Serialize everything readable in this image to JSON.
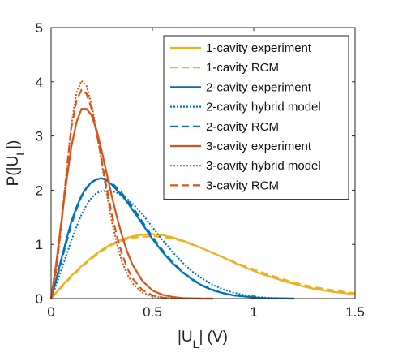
{
  "chart_data": {
    "type": "line",
    "xlabel": "|U_L| (V)",
    "ylabel": "P(|U_L|)",
    "xlim": [
      0,
      1.5
    ],
    "ylim": [
      0,
      5
    ],
    "x_ticks": [
      "0",
      "0.5",
      "1",
      "1.5"
    ],
    "y_ticks": [
      "0",
      "1",
      "2",
      "3",
      "4",
      "5"
    ],
    "grid": false,
    "legend_position": "top-right",
    "series": [
      {
        "name": "1-cavity experiment",
        "color": "#EDB120",
        "style": "solid",
        "x": [
          0,
          0.05,
          0.1,
          0.15,
          0.2,
          0.25,
          0.3,
          0.35,
          0.4,
          0.45,
          0.5,
          0.55,
          0.6,
          0.65,
          0.7,
          0.75,
          0.8,
          0.85,
          0.9,
          0.95,
          1.0,
          1.05,
          1.1,
          1.15,
          1.2,
          1.25,
          1.3,
          1.35,
          1.4,
          1.45,
          1.5
        ],
        "y": [
          0,
          0.22,
          0.42,
          0.6,
          0.76,
          0.9,
          1.01,
          1.09,
          1.15,
          1.18,
          1.19,
          1.17,
          1.13,
          1.07,
          1.0,
          0.92,
          0.84,
          0.76,
          0.67,
          0.59,
          0.51,
          0.44,
          0.38,
          0.32,
          0.27,
          0.22,
          0.18,
          0.15,
          0.12,
          0.1,
          0.08
        ]
      },
      {
        "name": "1-cavity RCM",
        "color": "#EDB120",
        "style": "dashed",
        "x": [
          0,
          0.05,
          0.1,
          0.15,
          0.2,
          0.25,
          0.3,
          0.35,
          0.4,
          0.45,
          0.5,
          0.55,
          0.6,
          0.65,
          0.7,
          0.75,
          0.8,
          0.85,
          0.9,
          0.95,
          1.0,
          1.05,
          1.1,
          1.15,
          1.2,
          1.25,
          1.3,
          1.35,
          1.4,
          1.45,
          1.5
        ],
        "y": [
          0,
          0.2,
          0.4,
          0.58,
          0.74,
          0.88,
          0.99,
          1.07,
          1.12,
          1.14,
          1.15,
          1.14,
          1.11,
          1.06,
          0.99,
          0.92,
          0.84,
          0.76,
          0.68,
          0.61,
          0.54,
          0.47,
          0.41,
          0.35,
          0.3,
          0.25,
          0.21,
          0.18,
          0.15,
          0.12,
          0.1
        ]
      },
      {
        "name": "2-cavity experiment",
        "color": "#0072BD",
        "style": "solid",
        "x": [
          0,
          0.025,
          0.05,
          0.075,
          0.1,
          0.125,
          0.15,
          0.175,
          0.2,
          0.225,
          0.25,
          0.275,
          0.3,
          0.325,
          0.35,
          0.375,
          0.4,
          0.45,
          0.5,
          0.55,
          0.6,
          0.65,
          0.7,
          0.75,
          0.8,
          0.85,
          0.9,
          0.95,
          1.0,
          1.05,
          1.1,
          1.2
        ],
        "y": [
          0,
          0.35,
          0.72,
          1.08,
          1.42,
          1.68,
          1.9,
          2.05,
          2.15,
          2.2,
          2.22,
          2.18,
          2.1,
          2.0,
          1.9,
          1.78,
          1.65,
          1.38,
          1.1,
          0.86,
          0.65,
          0.48,
          0.34,
          0.23,
          0.15,
          0.1,
          0.06,
          0.04,
          0.02,
          0.01,
          0.005,
          0
        ]
      },
      {
        "name": "2-cavity hybrid model",
        "color": "#0072BD",
        "style": "dotted",
        "x": [
          0,
          0.025,
          0.05,
          0.075,
          0.1,
          0.125,
          0.15,
          0.175,
          0.2,
          0.225,
          0.25,
          0.275,
          0.3,
          0.325,
          0.35,
          0.375,
          0.4,
          0.45,
          0.5,
          0.55,
          0.6,
          0.65,
          0.7,
          0.75,
          0.8,
          0.85,
          0.9,
          0.95,
          1.0,
          1.05,
          1.1,
          1.2
        ],
        "y": [
          0,
          0.25,
          0.52,
          0.8,
          1.07,
          1.32,
          1.55,
          1.73,
          1.86,
          1.95,
          1.98,
          1.99,
          1.98,
          1.95,
          1.9,
          1.84,
          1.76,
          1.56,
          1.32,
          1.08,
          0.86,
          0.66,
          0.49,
          0.36,
          0.25,
          0.17,
          0.11,
          0.07,
          0.04,
          0.02,
          0.01,
          0
        ]
      },
      {
        "name": "2-cavity RCM",
        "color": "#0072BD",
        "style": "dashed",
        "x": [
          0,
          0.025,
          0.05,
          0.075,
          0.1,
          0.125,
          0.15,
          0.175,
          0.2,
          0.225,
          0.25,
          0.275,
          0.3,
          0.325,
          0.35,
          0.375,
          0.4,
          0.45,
          0.5,
          0.55,
          0.6,
          0.65,
          0.7,
          0.75,
          0.8,
          0.85,
          0.9,
          0.95,
          1.0,
          1.05,
          1.1,
          1.2
        ],
        "y": [
          0,
          0.33,
          0.68,
          1.03,
          1.37,
          1.65,
          1.88,
          2.04,
          2.14,
          2.2,
          2.22,
          2.2,
          2.13,
          2.04,
          1.94,
          1.82,
          1.7,
          1.42,
          1.14,
          0.89,
          0.67,
          0.49,
          0.35,
          0.24,
          0.16,
          0.1,
          0.06,
          0.04,
          0.02,
          0.01,
          0.005,
          0
        ]
      },
      {
        "name": "3-cavity experiment",
        "color": "#D95319",
        "style": "solid",
        "x": [
          0,
          0.025,
          0.05,
          0.075,
          0.1,
          0.125,
          0.15,
          0.175,
          0.2,
          0.225,
          0.25,
          0.275,
          0.3,
          0.325,
          0.35,
          0.375,
          0.4,
          0.45,
          0.5,
          0.55,
          0.6,
          0.65,
          0.7,
          0.75,
          0.8
        ],
        "y": [
          0,
          0.65,
          1.4,
          2.15,
          2.8,
          3.25,
          3.5,
          3.5,
          3.38,
          3.1,
          2.72,
          2.3,
          1.88,
          1.5,
          1.16,
          0.87,
          0.64,
          0.33,
          0.15,
          0.07,
          0.03,
          0.01,
          0.005,
          0,
          0
        ]
      },
      {
        "name": "3-cavity hybrid model",
        "color": "#D95319",
        "style": "dotted",
        "x": [
          0,
          0.025,
          0.05,
          0.075,
          0.1,
          0.125,
          0.15,
          0.175,
          0.2,
          0.225,
          0.25,
          0.275,
          0.3,
          0.325,
          0.35,
          0.375,
          0.4,
          0.45,
          0.5,
          0.55,
          0.6,
          0.65,
          0.7,
          0.75,
          0.8
        ],
        "y": [
          0,
          0.5,
          1.3,
          2.3,
          3.2,
          3.8,
          4.02,
          3.92,
          3.58,
          3.08,
          2.5,
          1.92,
          1.42,
          1.0,
          0.68,
          0.45,
          0.29,
          0.11,
          0.04,
          0.015,
          0.005,
          0,
          0,
          0,
          0
        ]
      },
      {
        "name": "3-cavity RCM",
        "color": "#D95319",
        "style": "dashed",
        "x": [
          0,
          0.025,
          0.05,
          0.075,
          0.1,
          0.125,
          0.15,
          0.175,
          0.2,
          0.225,
          0.25,
          0.275,
          0.3,
          0.325,
          0.35,
          0.375,
          0.4,
          0.45,
          0.5,
          0.55,
          0.6,
          0.65,
          0.7,
          0.75,
          0.8
        ],
        "y": [
          0,
          0.55,
          1.35,
          2.3,
          3.15,
          3.65,
          3.85,
          3.78,
          3.5,
          3.05,
          2.55,
          2.02,
          1.55,
          1.15,
          0.82,
          0.57,
          0.38,
          0.16,
          0.06,
          0.02,
          0.008,
          0,
          0,
          0,
          0
        ]
      }
    ]
  }
}
